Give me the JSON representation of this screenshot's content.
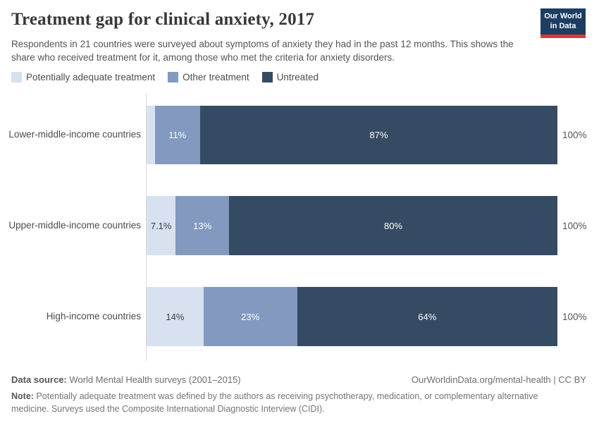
{
  "header": {
    "title": "Treatment gap for clinical anxiety, 2017",
    "subtitle": "Respondents in 21 countries were surveyed about symptoms of anxiety they had in the past 12 months. This shows the share who received treatment for it, among those who met the criteria for anxiety disorders.",
    "logo_line1": "Our World",
    "logo_line2": "in Data",
    "logo_bg": "#1d3d63",
    "logo_stripe": "#dc3a30"
  },
  "legend": [
    {
      "label": "Potentially adequate treatment",
      "color": "#d7e1f0"
    },
    {
      "label": "Other treatment",
      "color": "#8399c0"
    },
    {
      "label": "Untreated",
      "color": "#354a63"
    }
  ],
  "chart_data": {
    "type": "bar",
    "orientation": "horizontal-stacked",
    "title": "Treatment gap for clinical anxiety, 2017",
    "categories": [
      "Lower-middle-income countries",
      "Upper-middle-income countries",
      "High-income countries"
    ],
    "series": [
      {
        "name": "Potentially adequate treatment",
        "color": "#d7e1f0",
        "label_color": "#3d3d3d",
        "values": [
          2,
          7.1,
          14
        ],
        "labels": [
          "",
          "7.1%",
          "14%"
        ]
      },
      {
        "name": "Other treatment",
        "color": "#8399c0",
        "label_color": "#ffffff",
        "values": [
          11,
          13,
          23
        ],
        "labels": [
          "11%",
          "13%",
          "23%"
        ]
      },
      {
        "name": "Untreated",
        "color": "#354a63",
        "label_color": "#ffffff",
        "values": [
          87,
          80,
          64
        ],
        "labels": [
          "87%",
          "80%",
          "64%"
        ]
      }
    ],
    "total_label": "100%",
    "xlim": [
      0,
      100
    ],
    "grid": false,
    "legend_position": "top"
  },
  "footer": {
    "datasource_label": "Data source:",
    "datasource_text": " World Mental Health surveys (2001–2015)",
    "link": "OurWorldinData.org/mental-health | CC BY",
    "note_label": "Note:",
    "note_text": " Potentially adequate treatment was defined by the authors as receiving psychotherapy, medication, or complementary alternative medicine. Surveys used the Composite International Diagnostic Interview (CIDI)."
  }
}
